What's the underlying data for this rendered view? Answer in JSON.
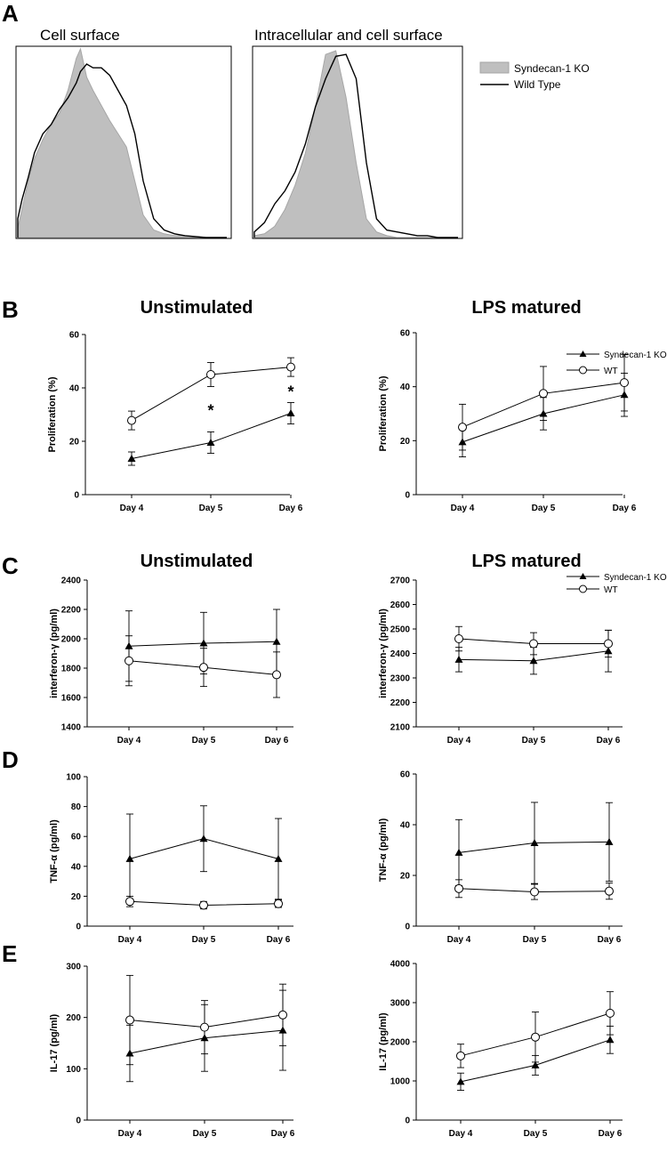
{
  "figure": {
    "panel_letters": [
      "A",
      "B",
      "C",
      "D",
      "E"
    ],
    "titles": {
      "flow_left": "Cell surface",
      "flow_right": "Intracellular and cell surface",
      "B_left": "Unstimulated",
      "B_right": "LPS matured",
      "C_left": "Unstimulated",
      "C_right": "LPS matured"
    },
    "flow_legend": {
      "ko": "Syndecan-1 KO",
      "wt": "Wild Type"
    },
    "line_legend": {
      "ko": "Syndecan-1 KO",
      "wt": "WT"
    },
    "significance_mark": "*",
    "colors": {
      "ko_fill": "#bfbfbf",
      "ko_stroke": "#a6a6a6",
      "line": "#000000",
      "background": "#ffffff"
    }
  },
  "chart_data": [
    {
      "id": "A-left",
      "type": "area",
      "title": "Cell surface",
      "description_series": [
        "Syndecan-1 KO (shaded histogram)",
        "Wild Type (line histogram)"
      ],
      "x": [
        0,
        0.02,
        0.05,
        0.08,
        0.12,
        0.16,
        0.2,
        0.24,
        0.28,
        0.3,
        0.33,
        0.36,
        0.4,
        0.44,
        0.48,
        0.52,
        0.56,
        0.6,
        0.65,
        0.7,
        0.75,
        0.8,
        0.9,
        1.0
      ],
      "series": [
        {
          "name": "Syndecan-1 KO",
          "values": [
            0.05,
            0.15,
            0.3,
            0.42,
            0.52,
            0.6,
            0.66,
            0.78,
            0.95,
            1.0,
            0.85,
            0.78,
            0.7,
            0.62,
            0.55,
            0.48,
            0.3,
            0.12,
            0.04,
            0.02,
            0.01,
            0.01,
            0.0,
            0.0
          ]
        },
        {
          "name": "Wild Type",
          "values": [
            0.1,
            0.2,
            0.32,
            0.45,
            0.55,
            0.6,
            0.68,
            0.74,
            0.82,
            0.88,
            0.92,
            0.9,
            0.9,
            0.86,
            0.78,
            0.7,
            0.55,
            0.3,
            0.1,
            0.04,
            0.02,
            0.01,
            0.0,
            0.0
          ]
        }
      ]
    },
    {
      "id": "A-right",
      "type": "area",
      "title": "Intracellular and cell surface",
      "x": [
        0,
        0.05,
        0.1,
        0.15,
        0.2,
        0.25,
        0.3,
        0.35,
        0.4,
        0.45,
        0.5,
        0.55,
        0.6,
        0.65,
        0.7,
        0.75,
        0.8,
        0.85,
        0.9,
        1.0
      ],
      "series": [
        {
          "name": "Syndecan-1 KO",
          "values": [
            0.01,
            0.02,
            0.06,
            0.15,
            0.28,
            0.45,
            0.7,
            0.98,
            1.0,
            0.75,
            0.4,
            0.1,
            0.03,
            0.01,
            0.0,
            0.0,
            0.0,
            0.0,
            0.0,
            0.0
          ]
        },
        {
          "name": "Wild Type",
          "values": [
            0.03,
            0.08,
            0.18,
            0.25,
            0.35,
            0.5,
            0.7,
            0.85,
            0.97,
            0.98,
            0.85,
            0.4,
            0.1,
            0.04,
            0.03,
            0.02,
            0.01,
            0.01,
            0.0,
            0.0
          ]
        }
      ]
    },
    {
      "id": "B-left",
      "type": "line",
      "title": "Unstimulated",
      "ylabel": "Proliferation  (%)",
      "categories": [
        "Day 4",
        "Day 5",
        "Day 6"
      ],
      "ylim": [
        0,
        60
      ],
      "yticks": [
        0,
        20,
        40,
        60
      ],
      "significance": [
        false,
        true,
        true
      ],
      "series": [
        {
          "name": "Syndecan-1 KO",
          "marker": "triangle",
          "values": [
            13.5,
            19.5,
            30.5
          ],
          "errors": [
            2.5,
            4,
            4
          ]
        },
        {
          "name": "WT",
          "marker": "circle",
          "values": [
            27.8,
            45,
            47.8
          ],
          "errors": [
            3.5,
            4.5,
            3.5
          ]
        }
      ]
    },
    {
      "id": "B-right",
      "type": "line",
      "title": "LPS matured",
      "ylabel": "Proliferation  (%)",
      "categories": [
        "Day 4",
        "Day 5",
        "Day 6"
      ],
      "ylim": [
        0,
        60
      ],
      "yticks": [
        0,
        20,
        40,
        60
      ],
      "series": [
        {
          "name": "Syndecan-1 KO",
          "marker": "triangle",
          "values": [
            19.5,
            30,
            37
          ],
          "errors": [
            5.5,
            6,
            8
          ]
        },
        {
          "name": "WT",
          "marker": "circle",
          "values": [
            25,
            37.5,
            41.5
          ],
          "errors": [
            8.5,
            10,
            10.5
          ]
        }
      ]
    },
    {
      "id": "C-left",
      "type": "line",
      "title": "Unstimulated",
      "ylabel": "interferon-γ (pg/ml)",
      "categories": [
        "Day 4",
        "Day 5",
        "Day 6"
      ],
      "ylim": [
        1400,
        2400
      ],
      "yticks": [
        1400,
        1600,
        1800,
        2000,
        2200,
        2400
      ],
      "series": [
        {
          "name": "Syndecan-1 KO",
          "marker": "triangle",
          "values": [
            1950,
            1970,
            1980
          ],
          "errors": [
            240,
            210,
            220
          ]
        },
        {
          "name": "WT",
          "marker": "circle",
          "values": [
            1850,
            1805,
            1755
          ],
          "errors": [
            170,
            130,
            155
          ]
        }
      ]
    },
    {
      "id": "C-right",
      "type": "line",
      "title": "LPS matured",
      "ylabel": "interferon-γ (pg/ml)",
      "categories": [
        "Day 4",
        "Day 5",
        "Day 6"
      ],
      "ylim": [
        2100,
        2700
      ],
      "yticks": [
        2100,
        2200,
        2300,
        2400,
        2500,
        2600,
        2700
      ],
      "series": [
        {
          "name": "Syndecan-1 KO",
          "marker": "triangle",
          "values": [
            2375,
            2370,
            2410
          ],
          "errors": [
            50,
            55,
            85
          ]
        },
        {
          "name": "WT",
          "marker": "circle",
          "values": [
            2460,
            2440,
            2440
          ],
          "errors": [
            50,
            45,
            55
          ]
        }
      ]
    },
    {
      "id": "D-left",
      "type": "line",
      "ylabel": "TNF-α (pg/ml)",
      "categories": [
        "Day 4",
        "Day 5",
        "Day 6"
      ],
      "ylim": [
        0,
        100
      ],
      "yticks": [
        0,
        20,
        40,
        60,
        80,
        100
      ],
      "series": [
        {
          "name": "Syndecan-1 KO",
          "marker": "triangle",
          "values": [
            45,
            58.5,
            45
          ],
          "errors": [
            30,
            22,
            27
          ]
        },
        {
          "name": "WT",
          "marker": "circle",
          "values": [
            16.5,
            14,
            15
          ],
          "errors": [
            3.5,
            2.5,
            2.5
          ]
        }
      ]
    },
    {
      "id": "D-right",
      "type": "line",
      "ylabel": "TNF-α (pg/ml)",
      "categories": [
        "Day 4",
        "Day 5",
        "Day 6"
      ],
      "ylim": [
        0,
        60
      ],
      "yticks": [
        0,
        20,
        40,
        60
      ],
      "series": [
        {
          "name": "Syndecan-1 KO",
          "marker": "triangle",
          "values": [
            29,
            32.8,
            33.2
          ],
          "errors": [
            13,
            16,
            15.5
          ]
        },
        {
          "name": "WT",
          "marker": "circle",
          "values": [
            14.8,
            13.5,
            13.8
          ],
          "errors": [
            3.5,
            3,
            3.2
          ]
        }
      ]
    },
    {
      "id": "E-left",
      "type": "line",
      "ylabel": "IL-17 (pg/ml)",
      "categories": [
        "Day 4",
        "Day 5",
        "Day 6"
      ],
      "ylim": [
        0,
        300
      ],
      "yticks": [
        0,
        100,
        200,
        300
      ],
      "series": [
        {
          "name": "Syndecan-1 KO",
          "marker": "triangle",
          "values": [
            130,
            160,
            175
          ],
          "errors": [
            55,
            65,
            78
          ]
        },
        {
          "name": "WT",
          "marker": "circle",
          "values": [
            195,
            181,
            205
          ],
          "errors": [
            87,
            52,
            60
          ]
        }
      ]
    },
    {
      "id": "E-right",
      "type": "line",
      "ylabel": "IL-17 (pg/ml)",
      "categories": [
        "Day 4",
        "Day 5",
        "Day 6"
      ],
      "ylim": [
        0,
        4000
      ],
      "yticks": [
        0,
        1000,
        2000,
        3000,
        4000
      ],
      "series": [
        {
          "name": "Syndecan-1 KO",
          "marker": "triangle",
          "values": [
            980,
            1400,
            2050
          ],
          "errors": [
            220,
            250,
            350
          ]
        },
        {
          "name": "WT",
          "marker": "circle",
          "values": [
            1640,
            2120,
            2730
          ],
          "errors": [
            300,
            640,
            550
          ]
        }
      ]
    }
  ]
}
